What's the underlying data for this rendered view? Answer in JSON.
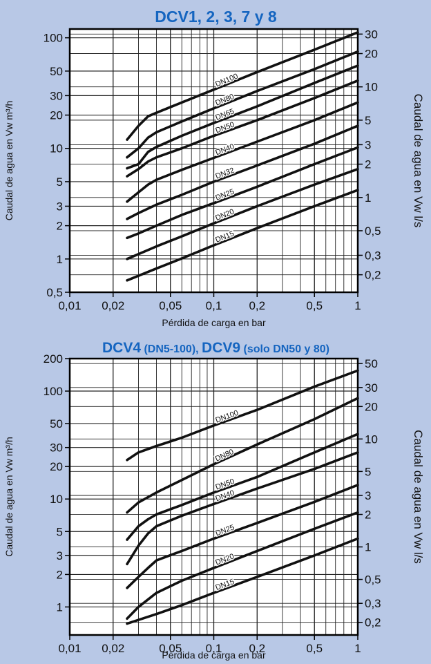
{
  "chart_data": [
    {
      "type": "line",
      "title": "DCV1, 2, 3, 7 y 8",
      "xlabel": "Pérdida de carga en bar",
      "ylabel": "Caudal de agua en Vw m³/h",
      "y2label": "Caudal de agua en Vw l/s",
      "xscale": "log",
      "yscale": "log",
      "xlim": [
        0.01,
        1
      ],
      "ylim": [
        0.5,
        120
      ],
      "x_ticks": [
        0.01,
        0.02,
        0.05,
        0.1,
        0.2,
        0.5,
        1
      ],
      "x_tick_labels": [
        "0,01",
        "0,02",
        "0,05",
        "0,1",
        "0,2",
        "0,5",
        "1"
      ],
      "y_ticks": [
        0.5,
        1,
        2,
        3,
        5,
        10,
        20,
        30,
        50,
        100
      ],
      "y_tick_labels": [
        "0,5",
        "1",
        "2",
        "3",
        "5",
        "10",
        "20",
        "30",
        "50",
        "100"
      ],
      "y2_ticks": [
        0.2,
        0.3,
        0.5,
        1,
        2,
        3,
        5,
        10,
        20,
        30
      ],
      "y2_tick_labels": [
        "0,2",
        "0,3",
        "0,5",
        "1",
        "2",
        "3",
        "5",
        "10",
        "20",
        "30"
      ],
      "grid": true,
      "series": [
        {
          "name": "DN100",
          "points": [
            [
              0.025,
              12
            ],
            [
              0.03,
              16
            ],
            [
              0.035,
              19.5
            ],
            [
              0.04,
              21
            ],
            [
              0.06,
              26
            ],
            [
              0.1,
              34
            ],
            [
              0.2,
              49
            ],
            [
              0.5,
              78
            ],
            [
              1,
              112
            ]
          ]
        },
        {
          "name": "DN80",
          "points": [
            [
              0.025,
              8.3
            ],
            [
              0.03,
              10
            ],
            [
              0.035,
              12.5
            ],
            [
              0.04,
              14
            ],
            [
              0.06,
              17.5
            ],
            [
              0.1,
              23
            ],
            [
              0.2,
              33
            ],
            [
              0.5,
              52
            ],
            [
              1,
              75
            ]
          ]
        },
        {
          "name": "DN65",
          "points": [
            [
              0.025,
              6.6
            ],
            [
              0.03,
              7.2
            ],
            [
              0.035,
              9.3
            ],
            [
              0.04,
              10.3
            ],
            [
              0.06,
              13
            ],
            [
              0.1,
              17
            ],
            [
              0.2,
              24
            ],
            [
              0.5,
              39
            ],
            [
              1,
              56
            ]
          ]
        },
        {
          "name": "DN50",
          "points": [
            [
              0.025,
              5.6
            ],
            [
              0.03,
              6.5
            ],
            [
              0.035,
              7.6
            ],
            [
              0.04,
              8.3
            ],
            [
              0.06,
              10
            ],
            [
              0.1,
              13
            ],
            [
              0.2,
              18
            ],
            [
              0.5,
              28.5
            ],
            [
              1,
              41
            ]
          ]
        },
        {
          "name": "DN40",
          "points": [
            [
              0.025,
              3.3
            ],
            [
              0.03,
              4
            ],
            [
              0.035,
              4.7
            ],
            [
              0.04,
              5.2
            ],
            [
              0.06,
              6.4
            ],
            [
              0.1,
              8.2
            ],
            [
              0.2,
              11.5
            ],
            [
              0.5,
              18
            ],
            [
              1,
              26
            ]
          ]
        },
        {
          "name": "DN32",
          "points": [
            [
              0.025,
              2.3
            ],
            [
              0.03,
              2.6
            ],
            [
              0.04,
              3.1
            ],
            [
              0.06,
              3.8
            ],
            [
              0.1,
              5
            ],
            [
              0.2,
              7
            ],
            [
              0.5,
              11
            ],
            [
              1,
              16
            ]
          ]
        },
        {
          "name": "DN25",
          "points": [
            [
              0.025,
              1.55
            ],
            [
              0.03,
              1.7
            ],
            [
              0.04,
              2
            ],
            [
              0.06,
              2.5
            ],
            [
              0.1,
              3.2
            ],
            [
              0.2,
              4.5
            ],
            [
              0.5,
              7.2
            ],
            [
              1,
              10.2
            ]
          ]
        },
        {
          "name": "DN20",
          "points": [
            [
              0.025,
              1
            ],
            [
              0.04,
              1.3
            ],
            [
              0.06,
              1.6
            ],
            [
              0.1,
              2.1
            ],
            [
              0.2,
              3
            ],
            [
              0.5,
              4.7
            ],
            [
              1,
              6.5
            ]
          ]
        },
        {
          "name": "DN15",
          "points": [
            [
              0.025,
              0.64
            ],
            [
              0.04,
              0.82
            ],
            [
              0.06,
              1.01
            ],
            [
              0.1,
              1.33
            ],
            [
              0.2,
              1.9
            ],
            [
              0.5,
              3
            ],
            [
              1,
              4.2
            ]
          ]
        }
      ]
    },
    {
      "type": "line",
      "title_parts": [
        {
          "text": "DCV4",
          "size": "large"
        },
        {
          "text": " (DN5-100), ",
          "size": "small"
        },
        {
          "text": "DCV9",
          "size": "large"
        },
        {
          "text": " (solo DN50 y 80)",
          "size": "small"
        }
      ],
      "xlabel": "Pérdida de carga en bar",
      "ylabel": "Caudal de agua en Vw m³/h",
      "y2label": "Caudal de agua en Vw l/s",
      "xscale": "log",
      "yscale": "log",
      "xlim": [
        0.01,
        1
      ],
      "ylim": [
        0.55,
        200
      ],
      "x_ticks": [
        0.01,
        0.02,
        0.05,
        0.1,
        0.2,
        0.5,
        1
      ],
      "x_tick_labels": [
        "0,01",
        "0,02",
        "0,05",
        "0,1",
        "0,2",
        "0,5",
        "1"
      ],
      "y_ticks": [
        1,
        2,
        3,
        5,
        10,
        20,
        30,
        50,
        100,
        200
      ],
      "y_tick_labels": [
        "1",
        "2",
        "3",
        "5",
        "10",
        "20",
        "30",
        "50",
        "100",
        "200"
      ],
      "y2_ticks": [
        0.2,
        0.3,
        0.5,
        1,
        2,
        3,
        5,
        10,
        20,
        30,
        50
      ],
      "y2_tick_labels": [
        "0,2",
        "0,3",
        "0,5",
        "1",
        "2",
        "3",
        "5",
        "10",
        "20",
        "30",
        "50"
      ],
      "grid": true,
      "series": [
        {
          "name": "DN100",
          "points": [
            [
              0.025,
              23
            ],
            [
              0.03,
              27
            ],
            [
              0.04,
              31
            ],
            [
              0.06,
              37
            ],
            [
              0.1,
              48
            ],
            [
              0.2,
              67
            ],
            [
              0.5,
              110
            ],
            [
              1,
              155
            ]
          ]
        },
        {
          "name": "DN80",
          "points": [
            [
              0.025,
              7.5
            ],
            [
              0.03,
              9.3
            ],
            [
              0.04,
              11.5
            ],
            [
              0.06,
              15
            ],
            [
              0.1,
              21
            ],
            [
              0.2,
              32
            ],
            [
              0.5,
              55
            ],
            [
              1,
              86
            ]
          ]
        },
        {
          "name": "DN50",
          "points": [
            [
              0.025,
              4.2
            ],
            [
              0.03,
              5.6
            ],
            [
              0.035,
              6.5
            ],
            [
              0.04,
              7.2
            ],
            [
              0.06,
              8.8
            ],
            [
              0.1,
              11.5
            ],
            [
              0.2,
              16
            ],
            [
              0.5,
              27
            ],
            [
              1,
              40
            ]
          ]
        },
        {
          "name": "DN40",
          "points": [
            [
              0.025,
              2.5
            ],
            [
              0.03,
              3.7
            ],
            [
              0.035,
              4.8
            ],
            [
              0.04,
              5.6
            ],
            [
              0.06,
              7
            ],
            [
              0.1,
              9
            ],
            [
              0.2,
              12.5
            ],
            [
              0.5,
              19
            ],
            [
              1,
              27
            ]
          ]
        },
        {
          "name": "DN25",
          "points": [
            [
              0.025,
              1.5
            ],
            [
              0.03,
              1.9
            ],
            [
              0.035,
              2.3
            ],
            [
              0.04,
              2.7
            ],
            [
              0.06,
              3.3
            ],
            [
              0.1,
              4.3
            ],
            [
              0.2,
              6
            ],
            [
              0.5,
              9.4
            ],
            [
              1,
              13.5
            ]
          ]
        },
        {
          "name": "DN20",
          "points": [
            [
              0.025,
              0.78
            ],
            [
              0.03,
              1
            ],
            [
              0.04,
              1.35
            ],
            [
              0.06,
              1.75
            ],
            [
              0.1,
              2.3
            ],
            [
              0.2,
              3.3
            ],
            [
              0.5,
              5.3
            ],
            [
              1,
              7.5
            ]
          ]
        },
        {
          "name": "DN15",
          "points": [
            [
              0.025,
              0.7
            ],
            [
              0.04,
              0.86
            ],
            [
              0.06,
              1.04
            ],
            [
              0.1,
              1.35
            ],
            [
              0.2,
              1.9
            ],
            [
              0.5,
              3
            ],
            [
              1,
              4.3
            ]
          ]
        }
      ]
    }
  ]
}
